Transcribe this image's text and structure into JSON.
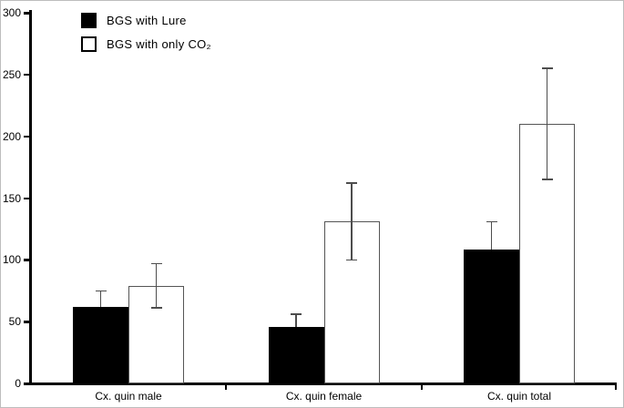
{
  "frame": {
    "background": "#ffffff",
    "border_color": "#bdbdbd"
  },
  "chart_data": {
    "type": "bar",
    "title": "",
    "xlabel": "",
    "ylabel": "",
    "categories": [
      "Cx. quin male",
      "Cx. quin female",
      "Cx. quin total"
    ],
    "series": [
      {
        "name": "BGS with Lure",
        "fill": "#000000",
        "values": [
          62,
          46,
          108
        ],
        "errors": [
          13,
          10,
          23
        ]
      },
      {
        "name": "BGS with only CO₂",
        "fill": "#ffffff",
        "values": [
          79,
          131,
          210
        ],
        "errors": [
          18,
          31,
          45
        ]
      }
    ],
    "ylim": [
      0,
      300
    ],
    "yticks": [
      0,
      50,
      100,
      150,
      200,
      250,
      300
    ],
    "grid": false,
    "legend_position": "top-left",
    "error_bars": true,
    "axis_color": "#000000",
    "error_bar_color": "#4d4d4d",
    "bar_border_color": "#555555"
  }
}
